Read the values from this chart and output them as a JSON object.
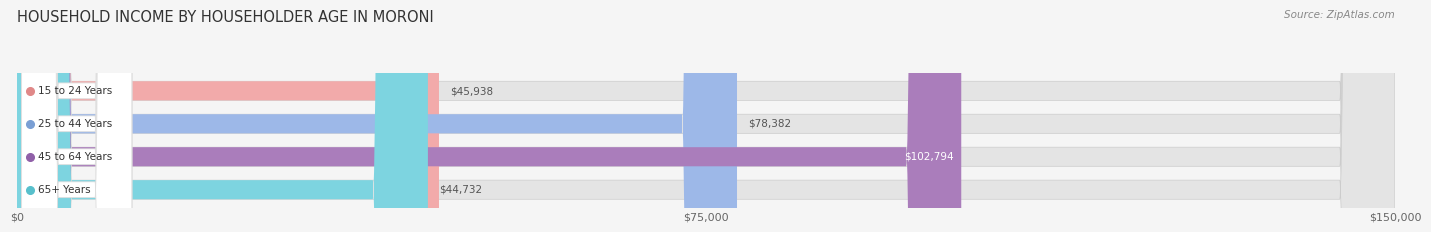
{
  "title": "HOUSEHOLD INCOME BY HOUSEHOLDER AGE IN MORONI",
  "source": "Source: ZipAtlas.com",
  "categories": [
    "15 to 24 Years",
    "25 to 44 Years",
    "45 to 64 Years",
    "65+ Years"
  ],
  "values": [
    45938,
    78382,
    102794,
    44732
  ],
  "bar_colors": [
    "#f2aaaa",
    "#9db8e8",
    "#aa7dbb",
    "#7dd4e0"
  ],
  "value_labels": [
    "$45,938",
    "$78,382",
    "$102,794",
    "$44,732"
  ],
  "label_inside": [
    false,
    false,
    true,
    false
  ],
  "tag_colors": [
    "#e08888",
    "#7a9fd4",
    "#9060a8",
    "#58c0cc"
  ],
  "xlim": [
    0,
    150000
  ],
  "xticks": [
    0,
    75000,
    150000
  ],
  "xtick_labels": [
    "$0",
    "$75,000",
    "$150,000"
  ],
  "background_color": "#f5f5f5",
  "bar_background": "#e4e4e4",
  "title_fontsize": 10.5,
  "source_fontsize": 7.5,
  "bar_height": 0.58,
  "figsize": [
    14.06,
    2.33
  ]
}
